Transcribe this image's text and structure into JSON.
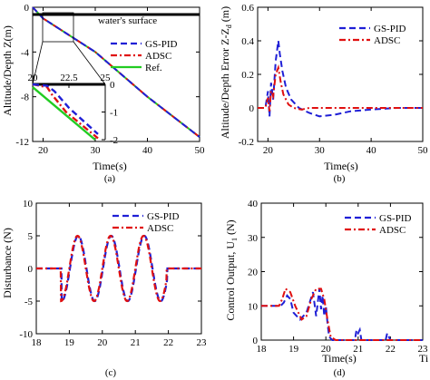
{
  "colors": {
    "gs_pid": "#1f1fd6",
    "adsc": "#e01010",
    "ref": "#22cc22",
    "surface": "#000000"
  },
  "chart_data": [
    {
      "panel": "(a)",
      "type": "line",
      "xlabel": "Time(s)",
      "ylabel": "Altitude/Depth Z(m)",
      "xlim": [
        18,
        50
      ],
      "ylim": [
        -12,
        0
      ],
      "xticks": [
        "20",
        "30",
        "40",
        "50"
      ],
      "yticks": [
        "0",
        "-4",
        "-8",
        "-12"
      ],
      "annotation": "water's surface",
      "legend": {
        "placement": "right",
        "entries": [
          "GS-PID",
          "ADSC",
          "Ref."
        ]
      },
      "series": [
        {
          "name": "GS-PID",
          "style": "dashed",
          "color": "#1f1fd6",
          "x": [
            18,
            20,
            30,
            40,
            50
          ],
          "y": [
            0,
            -1,
            -4,
            -8,
            -11.6
          ]
        },
        {
          "name": "ADSC",
          "style": "dashdot",
          "color": "#e01010",
          "x": [
            18,
            20,
            30,
            40,
            50
          ],
          "y": [
            0,
            -1,
            -4,
            -8,
            -11.6
          ]
        },
        {
          "name": "Ref.",
          "style": "solid",
          "color": "#22cc22",
          "x": [
            18,
            20,
            30,
            40,
            50
          ],
          "y": [
            0,
            -1,
            -4,
            -8,
            -11.6
          ]
        }
      ],
      "inset": {
        "xlim": [
          20,
          25
        ],
        "ylim": [
          -2,
          0
        ],
        "xticks": [
          "20",
          "22.5",
          "25"
        ],
        "yticks": [
          "0",
          "-1",
          "-2"
        ],
        "series": [
          {
            "name": "GS-PID",
            "x": [
              20,
              21,
              21.5,
              22.5,
              24.5
            ],
            "y": [
              0,
              -0.05,
              -0.25,
              -0.85,
              -1.8
            ]
          },
          {
            "name": "ADSC",
            "x": [
              20,
              21,
              21.3,
              22.3,
              24.5
            ],
            "y": [
              0,
              -0.1,
              -0.35,
              -1.0,
              -1.95
            ]
          },
          {
            "name": "Ref.",
            "x": [
              20,
              24.3
            ],
            "y": [
              -0.1,
              -2
            ]
          }
        ]
      }
    },
    {
      "panel": "(b)",
      "type": "line",
      "xlabel": "Time(s)",
      "ylabel": "Altitude/Depth Error Z-Z",
      "ylabel_sub": "d",
      "ylabel_unit": " (m)",
      "xlim": [
        18,
        50
      ],
      "ylim": [
        -0.2,
        0.6
      ],
      "xticks": [
        "20",
        "30",
        "40",
        "50"
      ],
      "yticks": [
        "0.6",
        "0.4",
        "0.2",
        "0",
        "-0.2"
      ],
      "legend": {
        "placement": "top-right",
        "entries": [
          "GS-PID",
          "ADSC"
        ]
      },
      "series": [
        {
          "name": "GS-PID",
          "style": "dashed",
          "color": "#1f1fd6",
          "x": [
            18,
            19.5,
            20,
            20.3,
            20.6,
            21,
            21.5,
            22,
            22.3,
            22.8,
            23.5,
            24.5,
            26,
            28,
            30,
            33,
            36,
            40,
            45,
            50
          ],
          "y": [
            0,
            0,
            0.1,
            -0.05,
            0.15,
            0.05,
            0.28,
            0.4,
            0.32,
            0.22,
            0.12,
            0.05,
            0.0,
            -0.03,
            -0.05,
            -0.04,
            -0.02,
            -0.01,
            0,
            0
          ]
        },
        {
          "name": "ADSC",
          "style": "dashdot",
          "color": "#e01010",
          "x": [
            18,
            19.5,
            20,
            20.3,
            20.6,
            21,
            21.5,
            22,
            22.5,
            23,
            24,
            25,
            26.5,
            28,
            30,
            35,
            40,
            45,
            50
          ],
          "y": [
            0,
            0,
            0.06,
            -0.02,
            0.1,
            0.07,
            0.2,
            0.24,
            0.15,
            0.08,
            0.02,
            0,
            -0.01,
            0,
            0,
            0,
            0,
            0,
            0
          ]
        }
      ]
    },
    {
      "panel": "(c)",
      "type": "line",
      "xlabel": "",
      "ylabel": "Disturbance (N)",
      "xlim": [
        18,
        23
      ],
      "ylim": [
        -10,
        10
      ],
      "xticks": [
        "18",
        "19",
        "20",
        "21",
        "22",
        "23"
      ],
      "yticks": [
        "10",
        "5",
        "0",
        "-5",
        "-10"
      ],
      "legend": {
        "placement": "top-right",
        "entries": [
          "GS-PID",
          "ADSC"
        ]
      },
      "series": [
        {
          "name": "GS-PID",
          "style": "dashed",
          "color": "#1f1fd6",
          "model": "0 outside [18.75, 21.95]; 5*sin(2*pi*(t-18.75)/1.0 - pi/2)-ish periodic burst"
        },
        {
          "name": "ADSC",
          "style": "dashdot",
          "color": "#e01010",
          "model": "same as GS-PID"
        }
      ]
    },
    {
      "panel": "(d)",
      "type": "line",
      "xlabel": "Time(s)",
      "ylabel": "Control Output, U",
      "ylabel_sub": "1",
      "ylabel_unit": " (N)",
      "xlim": [
        18,
        23
      ],
      "ylim": [
        0,
        40
      ],
      "xticks": [
        "18",
        "19",
        "20",
        "21",
        "22",
        "23"
      ],
      "yticks": [
        "40",
        "30",
        "20",
        "10",
        "0"
      ],
      "legend": {
        "placement": "top-right",
        "entries": [
          "GS-PID",
          "ADSC"
        ]
      },
      "series": [
        {
          "name": "GS-PID",
          "style": "dashed",
          "color": "#1f1fd6",
          "x": [
            18,
            18.6,
            18.7,
            18.8,
            18.9,
            19.0,
            19.2,
            19.4,
            19.6,
            19.7,
            19.8,
            19.85,
            19.9,
            19.95,
            20.0,
            20.05,
            20.1,
            20.2,
            20.9,
            20.95,
            21.0,
            21.05,
            21.1,
            21.85,
            21.9,
            21.95,
            22.0,
            23
          ],
          "y": [
            10,
            10,
            11,
            13,
            12,
            8,
            6,
            8,
            14,
            7,
            15,
            9,
            13,
            7,
            10,
            5,
            1,
            0,
            0,
            3,
            2,
            3,
            0,
            0,
            2,
            1,
            0,
            0
          ]
        },
        {
          "name": "ADSC",
          "style": "dashdot",
          "color": "#e01010",
          "x": [
            18,
            18.55,
            18.65,
            18.75,
            18.9,
            19.05,
            19.25,
            19.4,
            19.55,
            19.7,
            19.85,
            19.95,
            20.05,
            20.15,
            20.3,
            23
          ],
          "y": [
            10,
            10,
            12,
            15,
            14,
            10,
            6,
            7,
            12,
            15,
            15,
            12,
            6,
            1,
            0,
            0
          ]
        }
      ]
    }
  ],
  "captions": [
    "(a)",
    "(b)",
    "(c)",
    "(d)"
  ],
  "right_edge_label": "Ti"
}
